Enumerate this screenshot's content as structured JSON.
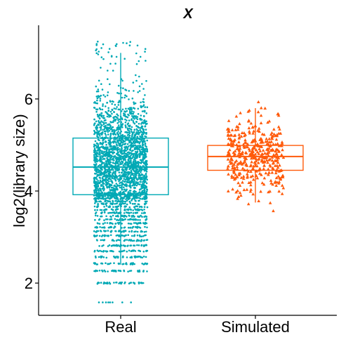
{
  "chart_data": {
    "type": "box",
    "title": "X",
    "xlabel": "",
    "ylabel": "log2(library size)",
    "categories": [
      "Real",
      "Simulated"
    ],
    "yticks": [
      2,
      4,
      6
    ],
    "ylim": [
      1.3,
      7.6
    ],
    "grid": false,
    "legend": "none",
    "series": [
      {
        "category": "Real",
        "color": "#00A9B5",
        "marker": "dot",
        "box": {
          "min": 2.4,
          "q1": 3.92,
          "median": 4.52,
          "q3": 5.15,
          "max": 7.0
        },
        "points_range": [
          1.58,
          7.3
        ]
      },
      {
        "category": "Simulated",
        "color": "#FF5A0A",
        "marker": "triangle",
        "box": {
          "min": 3.75,
          "q1": 4.45,
          "median": 4.75,
          "q3": 4.99,
          "max": 5.8
        },
        "points_range": [
          3.2,
          5.95
        ]
      }
    ]
  }
}
